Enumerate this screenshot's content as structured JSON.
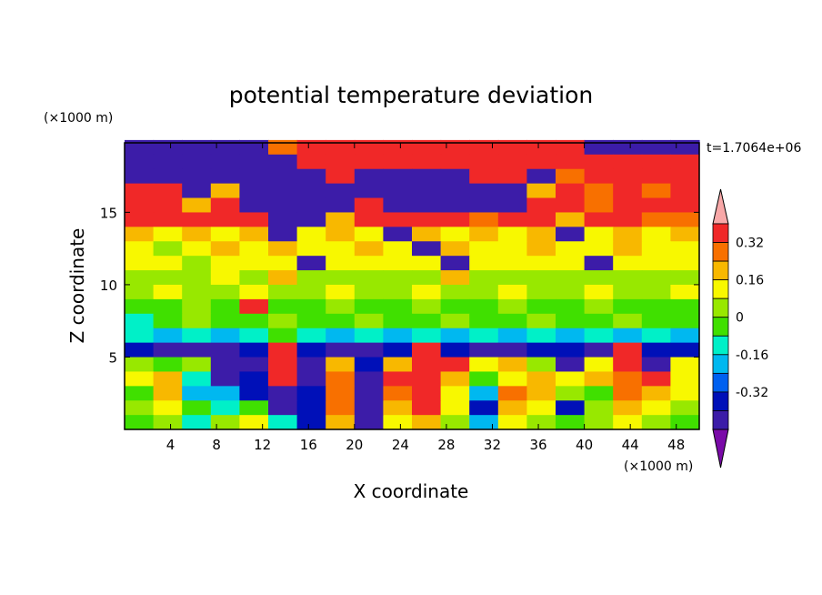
{
  "chart_data": {
    "type": "heatmap",
    "title": "potential temperature deviation",
    "xlabel": "X coordinate",
    "ylabel": "Z coordinate",
    "x_unit": "(×1000 m)",
    "y_unit": "(×1000 m)",
    "time_label": "t=1.7064e+06",
    "xlim": [
      0,
      50
    ],
    "ylim": [
      0,
      19.8
    ],
    "x_ticks": [
      "4",
      "8",
      "12",
      "16",
      "20",
      "24",
      "28",
      "32",
      "36",
      "40",
      "44",
      "48"
    ],
    "y_ticks": [
      "5",
      "10",
      "15"
    ],
    "x_tick_values": [
      4,
      8,
      12,
      16,
      20,
      24,
      28,
      32,
      36,
      40,
      44,
      48
    ],
    "y_tick_values": [
      5,
      10,
      15
    ],
    "colorbar": {
      "levels": [
        -0.4,
        -0.32,
        -0.24,
        -0.16,
        -0.08,
        0,
        0.08,
        0.16,
        0.24,
        0.32,
        0.4
      ],
      "labels": [
        "0.32",
        "0.16",
        "0",
        "-0.16",
        "-0.32"
      ],
      "label_values": [
        0.32,
        0.16,
        0,
        -0.16,
        -0.32
      ],
      "colors": [
        "#7a0aa8",
        "#3c1ca8",
        "#0010b8",
        "#0060f0",
        "#00b8f0",
        "#00f0c8",
        "#40e000",
        "#98e800",
        "#f8f800",
        "#f8b800",
        "#f87000",
        "#f02828",
        "#f8a8a8"
      ]
    },
    "rows_z": [
      19.5,
      18.5,
      17.5,
      16.5,
      15.5,
      14.5,
      13.5,
      12.5,
      11.5,
      10.5,
      9.5,
      8.5,
      7.5,
      6.5,
      5.5,
      4.5,
      3.5,
      2.5,
      1.5,
      0.5
    ],
    "cols_x": [
      1.25,
      3.75,
      6.25,
      8.75,
      11.25,
      13.75,
      16.25,
      18.75,
      21.25,
      23.75,
      26.25,
      28.75,
      31.25,
      33.75,
      36.25,
      38.75,
      41.25,
      43.75,
      46.25,
      48.75
    ],
    "values": [
      [
        -0.4,
        -0.4,
        -0.4,
        -0.4,
        -0.4,
        0.32,
        0.4,
        0.4,
        0.4,
        0.4,
        0.4,
        0.4,
        0.4,
        0.4,
        0.4,
        0.4,
        -0.4,
        -0.4,
        -0.4,
        -0.4
      ],
      [
        -0.4,
        -0.4,
        -0.4,
        -0.4,
        -0.4,
        -0.4,
        0.4,
        0.4,
        0.4,
        0.4,
        0.4,
        0.4,
        0.4,
        0.4,
        0.4,
        0.4,
        0.4,
        0.4,
        0.4,
        0.4
      ],
      [
        -0.4,
        -0.4,
        -0.4,
        -0.4,
        -0.4,
        -0.4,
        -0.4,
        0.4,
        -0.4,
        -0.4,
        -0.4,
        -0.4,
        0.4,
        0.4,
        -0.4,
        0.32,
        0.4,
        0.4,
        0.4,
        0.4
      ],
      [
        0.4,
        0.4,
        -0.4,
        0.24,
        -0.4,
        -0.4,
        -0.4,
        -0.4,
        -0.4,
        -0.4,
        -0.4,
        -0.4,
        -0.4,
        -0.4,
        0.24,
        0.4,
        0.32,
        0.4,
        0.32,
        0.4
      ],
      [
        0.4,
        0.4,
        0.24,
        0.4,
        -0.4,
        -0.4,
        -0.4,
        -0.4,
        0.4,
        -0.4,
        -0.4,
        -0.4,
        -0.4,
        -0.4,
        0.4,
        0.4,
        0.32,
        0.4,
        0.4,
        0.4
      ],
      [
        0.4,
        0.4,
        0.4,
        0.4,
        0.4,
        -0.4,
        -0.4,
        0.24,
        0.4,
        0.4,
        0.4,
        0.4,
        0.32,
        0.4,
        0.4,
        0.24,
        0.4,
        0.4,
        0.32,
        0.32
      ],
      [
        0.24,
        0.16,
        0.24,
        0.16,
        0.24,
        -0.4,
        0.16,
        0.24,
        0.16,
        -0.4,
        0.24,
        0.16,
        0.24,
        0.16,
        0.24,
        -0.4,
        0.16,
        0.24,
        0.16,
        0.24
      ],
      [
        0.16,
        0.08,
        0.16,
        0.24,
        0.16,
        0.24,
        0.16,
        0.16,
        0.24,
        0.16,
        -0.4,
        0.24,
        0.16,
        0.16,
        0.24,
        0.16,
        0.16,
        0.24,
        0.16,
        0.16
      ],
      [
        0.16,
        0.16,
        0.08,
        0.16,
        0.16,
        0.16,
        -0.4,
        0.16,
        0.16,
        0.16,
        0.16,
        -0.4,
        0.16,
        0.16,
        0.16,
        0.16,
        -0.4,
        0.16,
        0.16,
        0.16
      ],
      [
        0.08,
        0.08,
        0.08,
        0.16,
        0.08,
        0.24,
        0.08,
        0.08,
        0.08,
        0.08,
        0.08,
        0.24,
        0.08,
        0.08,
        0.08,
        0.08,
        0.08,
        0.08,
        0.08,
        0.08
      ],
      [
        0.08,
        0.16,
        0.08,
        0.08,
        0.16,
        0.08,
        0.08,
        0.16,
        0.08,
        0.08,
        0.16,
        0.08,
        0.08,
        0.16,
        0.08,
        0.08,
        0.16,
        0.08,
        0.08,
        0.16
      ],
      [
        0.0,
        0.0,
        0.08,
        0.0,
        0.4,
        0.0,
        0.0,
        0.08,
        0.0,
        0.0,
        0.08,
        0.0,
        0.0,
        0.08,
        0.0,
        0.0,
        0.08,
        0.0,
        0.0,
        0.0
      ],
      [
        -0.08,
        0.0,
        0.08,
        0.0,
        0.0,
        0.08,
        0.0,
        0.0,
        0.08,
        0.0,
        0.0,
        0.08,
        0.0,
        0.0,
        0.08,
        0.0,
        0.0,
        0.08,
        0.0,
        0.0
      ],
      [
        -0.08,
        -0.16,
        -0.08,
        -0.16,
        -0.08,
        0.0,
        -0.08,
        -0.16,
        -0.08,
        -0.16,
        -0.08,
        -0.16,
        -0.08,
        -0.16,
        -0.08,
        -0.16,
        -0.08,
        -0.16,
        -0.08,
        -0.16
      ],
      [
        -0.32,
        -0.4,
        -0.4,
        -0.4,
        -0.32,
        0.4,
        -0.32,
        -0.4,
        -0.4,
        -0.32,
        0.4,
        -0.32,
        -0.4,
        -0.4,
        -0.32,
        -0.32,
        -0.4,
        0.4,
        -0.32,
        -0.32
      ],
      [
        0.08,
        0.0,
        0.08,
        -0.4,
        -0.4,
        0.4,
        -0.4,
        0.24,
        -0.32,
        0.24,
        0.4,
        0.4,
        0.16,
        0.24,
        0.08,
        -0.4,
        0.16,
        0.4,
        -0.4,
        0.16
      ],
      [
        0.16,
        0.24,
        -0.08,
        -0.4,
        -0.32,
        0.4,
        -0.4,
        0.32,
        -0.4,
        0.4,
        0.4,
        0.24,
        0.0,
        0.16,
        0.24,
        0.16,
        0.24,
        0.32,
        0.4,
        0.16
      ],
      [
        0.0,
        0.24,
        -0.16,
        -0.16,
        -0.32,
        -0.4,
        -0.32,
        0.32,
        -0.4,
        0.32,
        0.4,
        0.16,
        -0.16,
        0.32,
        0.24,
        0.08,
        0.0,
        0.32,
        0.24,
        0.16
      ],
      [
        0.08,
        0.16,
        0.0,
        -0.08,
        0.0,
        -0.4,
        -0.32,
        0.32,
        -0.4,
        0.24,
        0.4,
        0.16,
        -0.32,
        0.24,
        0.16,
        -0.32,
        0.08,
        0.24,
        0.16,
        0.08
      ],
      [
        0.0,
        0.08,
        -0.08,
        0.08,
        0.16,
        -0.08,
        -0.32,
        0.24,
        -0.4,
        0.16,
        0.24,
        0.08,
        -0.16,
        0.16,
        0.08,
        0.0,
        0.08,
        0.16,
        0.08,
        0.0
      ]
    ]
  }
}
